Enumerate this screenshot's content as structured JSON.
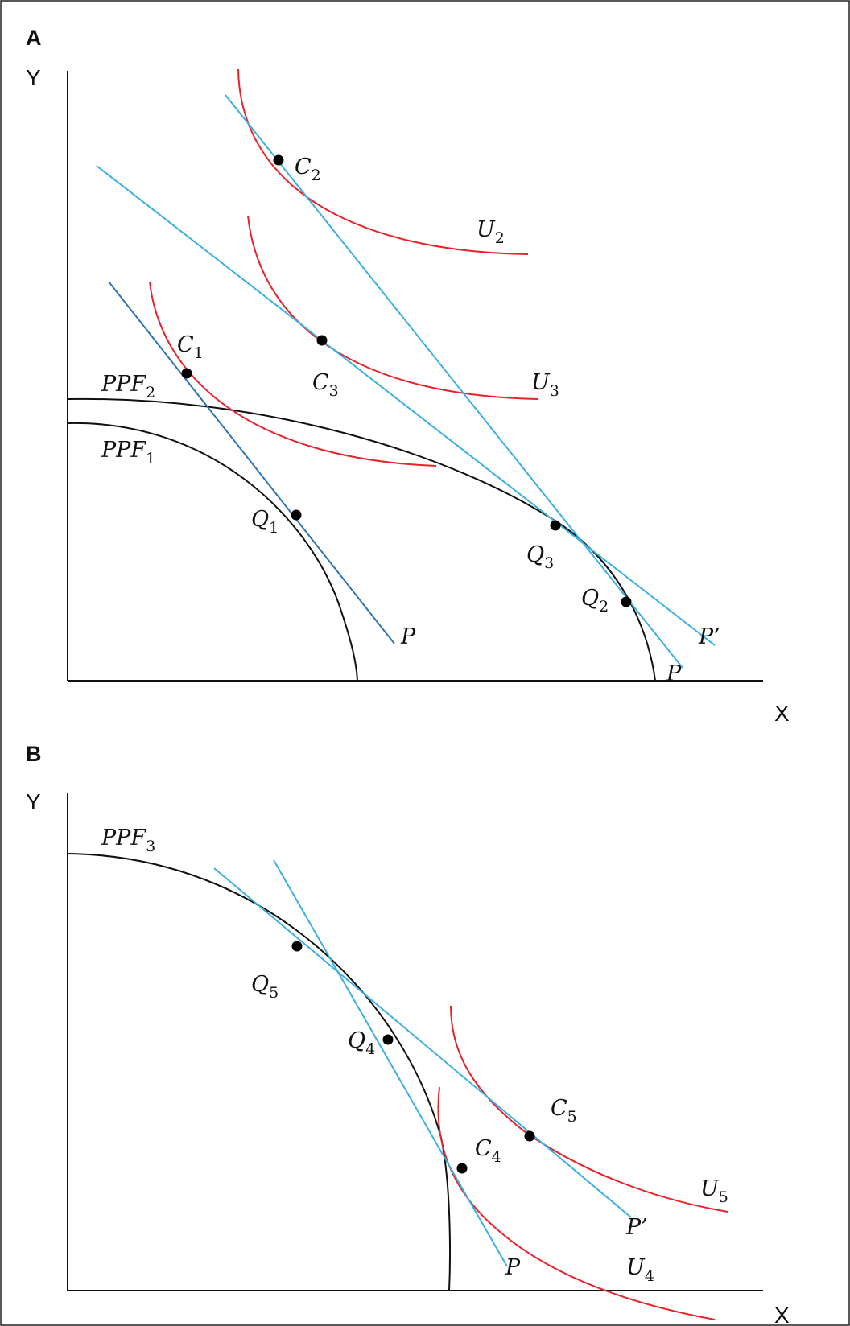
{
  "panel_a": {
    "letter": "A",
    "y_axis": "Y",
    "x_axis": "X",
    "ppf1": {
      "name": "PPF",
      "sub": "1"
    },
    "ppf2": {
      "name": "PPF",
      "sub": "2"
    },
    "c1": {
      "name": "C",
      "sub": "1"
    },
    "c2": {
      "name": "C",
      "sub": "2"
    },
    "c3": {
      "name": "C",
      "sub": "3"
    },
    "q1": {
      "name": "Q",
      "sub": "1"
    },
    "q2": {
      "name": "Q",
      "sub": "2"
    },
    "q3": {
      "name": "Q",
      "sub": "3"
    },
    "u2": {
      "name": "U",
      "sub": "2"
    },
    "u3": {
      "name": "U",
      "sub": "3"
    },
    "price_p_left": "P",
    "price_p_right": "P",
    "price_p_prime": "P’"
  },
  "panel_b": {
    "letter": "B",
    "y_axis": "Y",
    "x_axis": "X",
    "ppf3": {
      "name": "PPF",
      "sub": "3"
    },
    "q4": {
      "name": "Q",
      "sub": "4"
    },
    "q5": {
      "name": "Q",
      "sub": "5"
    },
    "c4": {
      "name": "C",
      "sub": "4"
    },
    "c5": {
      "name": "C",
      "sub": "5"
    },
    "u4": {
      "name": "U",
      "sub": "4"
    },
    "u5": {
      "name": "U",
      "sub": "5"
    },
    "price_p": "P",
    "price_p_prime": "P’"
  },
  "colors": {
    "indifference_curve": "#e8232b",
    "price_line": "#3ab0e2",
    "price_line_dark": "#2f73b8",
    "ppf": "#111111",
    "point": "#000000"
  }
}
